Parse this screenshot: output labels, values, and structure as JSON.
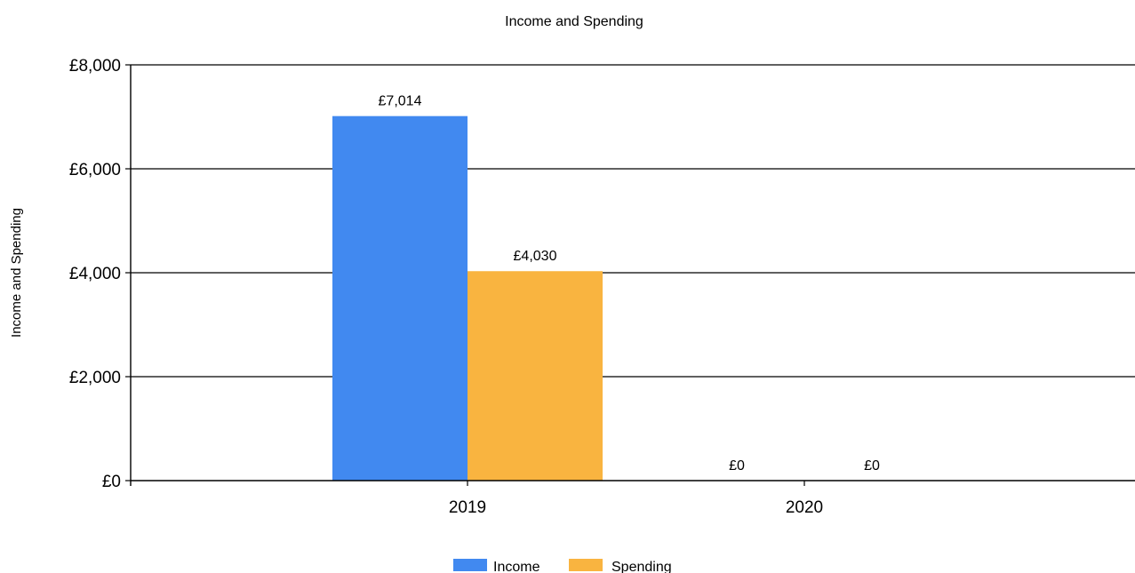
{
  "chart_data": {
    "type": "bar",
    "title": "Income and Spending",
    "xlabel": "",
    "ylabel": "Income and Spending",
    "categories": [
      "2019",
      "2020"
    ],
    "series": [
      {
        "name": "Income",
        "values": [
          7014,
          0
        ],
        "color": "#4189f0",
        "labels": [
          "£7,014",
          "£0"
        ]
      },
      {
        "name": "Spending",
        "values": [
          4030,
          0
        ],
        "color": "#f9b440",
        "labels": [
          "£4,030",
          "£0"
        ]
      }
    ],
    "ylim": [
      0,
      8000
    ],
    "y_ticks": [
      0,
      2000,
      4000,
      6000,
      8000
    ],
    "y_tick_labels": [
      "£0",
      "£2,000",
      "£4,000",
      "£6,000",
      "£8,000"
    ],
    "grid": true,
    "legend_position": "bottom"
  }
}
